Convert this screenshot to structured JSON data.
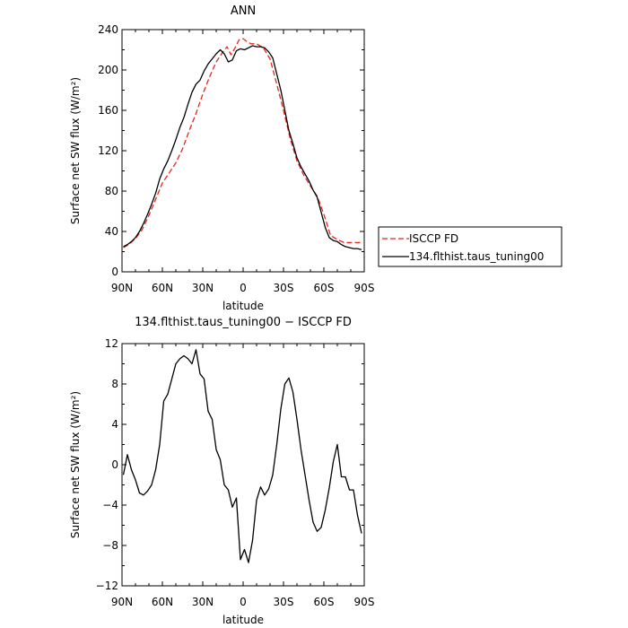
{
  "chart_data": [
    {
      "type": "line",
      "title": "ANN",
      "xlabel": "latitude",
      "ylabel": "Surface net SW flux (W/m²)",
      "ylim": [
        0,
        240
      ],
      "yticks": [
        0,
        40,
        80,
        120,
        160,
        200,
        240
      ],
      "yticklabels": [
        "0",
        "40",
        "80",
        "120",
        "160",
        "200",
        "240"
      ],
      "xlim": [
        90,
        -90
      ],
      "xticks": [
        90,
        60,
        30,
        0,
        -30,
        -60,
        -90
      ],
      "xticklabels": [
        "90N",
        "60N",
        "30N",
        "0",
        "30S",
        "60S",
        "90S"
      ],
      "grid": false,
      "legend": "outside-right",
      "series": [
        {
          "name": "ISCCP FD",
          "color": "#e8251a",
          "dash": true,
          "x": [
            89,
            85,
            80,
            75,
            70,
            65,
            60,
            55,
            50,
            45,
            40,
            35,
            30,
            25,
            20,
            15,
            12,
            9,
            6,
            3,
            0,
            -3,
            -6,
            -10,
            -15,
            -20,
            -25,
            -30,
            -35,
            -40,
            -45,
            -50,
            -55,
            -60,
            -65,
            -70,
            -75,
            -80,
            -85,
            -89
          ],
          "y": [
            24,
            27,
            33,
            42,
            56,
            72,
            88,
            98,
            108,
            122,
            140,
            157,
            176,
            193,
            208,
            218,
            223,
            215,
            222,
            230,
            231,
            228,
            226,
            226,
            222,
            211,
            186,
            160,
            132,
            110,
            96,
            85,
            75,
            57,
            36,
            32,
            29,
            29,
            29,
            29
          ]
        },
        {
          "name": "134.flthist.taus_tuning00",
          "color": "#000000",
          "dash": false,
          "x": [
            89,
            86,
            83,
            80,
            77,
            74,
            71,
            68,
            65,
            62,
            59,
            56,
            53,
            50,
            47,
            44,
            41,
            38,
            35,
            32,
            29,
            26,
            23,
            20,
            17,
            14,
            11,
            8,
            5,
            2,
            -1,
            -4,
            -7,
            -10,
            -13,
            -16,
            -19,
            -22,
            -25,
            -28,
            -31,
            -34,
            -37,
            -40,
            -43,
            -46,
            -49,
            -52,
            -55,
            -58,
            -61,
            -64,
            -67,
            -70,
            -73,
            -76,
            -79,
            -82,
            -85,
            -88
          ],
          "y": [
            25,
            27,
            30,
            34,
            40,
            48,
            57,
            67,
            78,
            92,
            102,
            110,
            120,
            131,
            143,
            153,
            166,
            178,
            186,
            190,
            199,
            206,
            211,
            216,
            220,
            216,
            208,
            210,
            219,
            221,
            220,
            222,
            224,
            223,
            223,
            222,
            218,
            212,
            196,
            180,
            160,
            140,
            127,
            113,
            104,
            97,
            90,
            81,
            74,
            59,
            44,
            34,
            31,
            30,
            27,
            25,
            24,
            23,
            23,
            22
          ]
        }
      ]
    },
    {
      "type": "line",
      "title": "134.flthist.taus_tuning00 − ISCCP FD",
      "xlabel": "latitude",
      "ylabel": "Surface net SW flux (W/m²)",
      "ylim": [
        -12,
        12
      ],
      "yticks": [
        -12,
        -8,
        -4,
        0,
        4,
        8,
        12
      ],
      "yticklabels": [
        "−12",
        "−8",
        "−4",
        "0",
        "4",
        "8",
        "12"
      ],
      "xlim": [
        90,
        -90
      ],
      "xticks": [
        90,
        60,
        30,
        0,
        -30,
        -60,
        -90
      ],
      "xticklabels": [
        "90N",
        "60N",
        "30N",
        "0",
        "30S",
        "60S",
        "90S"
      ],
      "grid": false,
      "series": [
        {
          "color": "#000000",
          "dash": false,
          "x": [
            89,
            86,
            83,
            80,
            77,
            74,
            71,
            68,
            65,
            62,
            59,
            56,
            53,
            50,
            47,
            44,
            41,
            38,
            35,
            32,
            29,
            26,
            23,
            20,
            17,
            14,
            11,
            8,
            5,
            2,
            -1,
            -4,
            -7,
            -10,
            -13,
            -16,
            -19,
            -22,
            -25,
            -28,
            -31,
            -34,
            -37,
            -40,
            -43,
            -46,
            -49,
            -52,
            -55,
            -58,
            -61,
            -64,
            -67,
            -70,
            -73,
            -76,
            -79,
            -82,
            -85,
            -88
          ],
          "y": [
            -1.0,
            1.0,
            -0.5,
            -1.5,
            -2.8,
            -3.0,
            -2.6,
            -2.0,
            -0.5,
            2.0,
            6.3,
            7.0,
            8.5,
            10.0,
            10.5,
            10.8,
            10.5,
            10.0,
            11.4,
            9.0,
            8.5,
            5.3,
            4.5,
            1.5,
            0.5,
            -2.0,
            -2.5,
            -4.2,
            -3.3,
            -9.4,
            -8.4,
            -9.7,
            -7.5,
            -3.5,
            -2.2,
            -3.0,
            -2.4,
            -1.0,
            2.0,
            5.5,
            8.0,
            8.6,
            7.2,
            4.5,
            1.5,
            -1.0,
            -3.5,
            -5.7,
            -6.6,
            -6.2,
            -4.5,
            -2.3,
            0.3,
            2.0,
            -1.2,
            -1.2,
            -2.5,
            -2.5,
            -5.0,
            -6.8
          ]
        }
      ]
    }
  ]
}
